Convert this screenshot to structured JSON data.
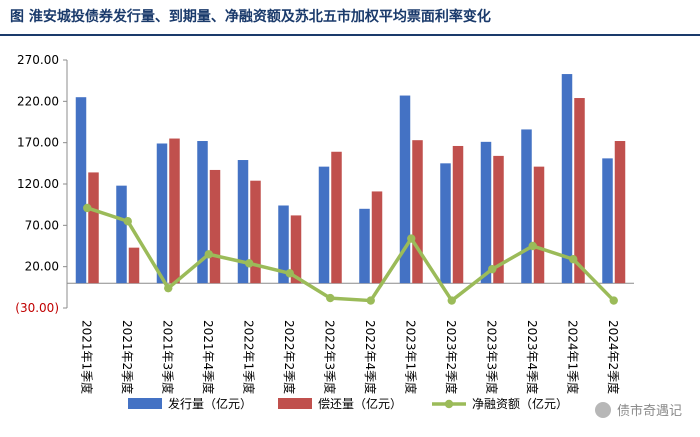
{
  "title": "图  淮安城投债券发行量、到期量、净融资额及苏北五市加权平均票面利率变化",
  "watermark": {
    "text": "债市奇遇记",
    "icon": "wechat-icon"
  },
  "colors": {
    "issue": "#4472C4",
    "repay": "#C0504D",
    "net": "#9BBB59",
    "negative_label": "#C00000",
    "title": "#1a3a6b"
  },
  "chart_data": {
    "type": "bar",
    "categories": [
      "2021年1季度",
      "2021年2季度",
      "2021年3季度",
      "2021年4季度",
      "2022年1季度",
      "2022年2季度",
      "2022年3季度",
      "2022年4季度",
      "2023年1季度",
      "2023年2季度",
      "2023年3季度",
      "2023年4季度",
      "2024年1季度",
      "2024年2季度"
    ],
    "series": [
      {
        "name": "发行量（亿元）",
        "type": "bar",
        "values": [
          225,
          118,
          169,
          172,
          149,
          94,
          141,
          90,
          227,
          145,
          171,
          186,
          253,
          151
        ]
      },
      {
        "name": "偿还量（亿元）",
        "type": "bar",
        "values": [
          134,
          43,
          175,
          137,
          124,
          82,
          159,
          111,
          173,
          166,
          154,
          141,
          224,
          172
        ]
      },
      {
        "name": "净融资额（亿元）",
        "type": "line",
        "values": [
          91,
          75,
          -6,
          35,
          24,
          12,
          -18,
          -21,
          54,
          -21,
          17,
          45,
          29,
          -21
        ]
      }
    ],
    "ylim": [
      -30,
      270
    ],
    "yticks": [
      -30,
      20,
      70,
      120,
      170,
      220,
      270
    ],
    "ytick_labels": [
      "(30.00)",
      "20.00",
      "70.00",
      "120.00",
      "170.00",
      "220.00",
      "270.00"
    ],
    "grid": false,
    "legend_position": "bottom"
  }
}
